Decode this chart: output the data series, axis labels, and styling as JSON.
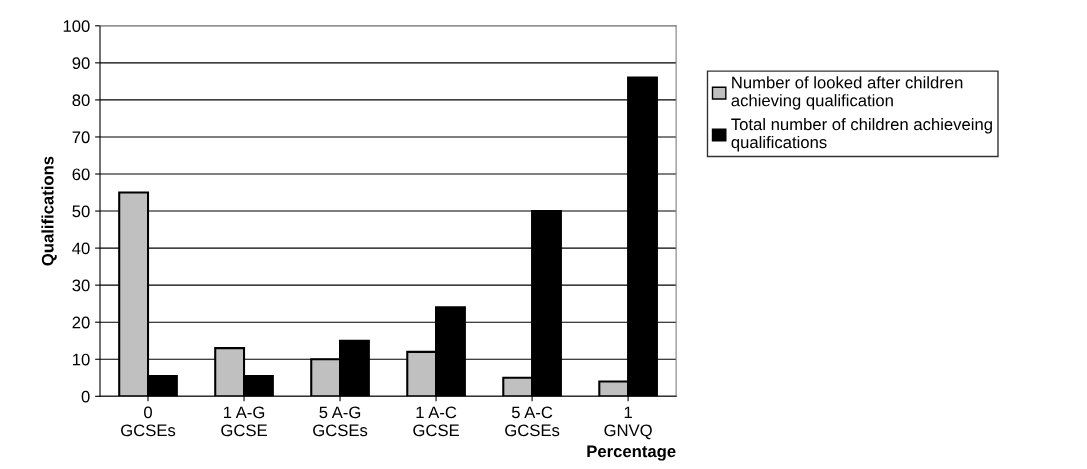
{
  "chart_data": {
    "type": "bar",
    "xlabel": "Percentage",
    "ylabel": "Qualifications",
    "categories": [
      "0\nGCSEs",
      "1 A-G\nGCSE",
      "5 A-G\nGCSEs",
      "1 A-C\nGCSE",
      "5 A-C\nGCSEs",
      "1\nGNVQ"
    ],
    "series": [
      {
        "name": "Number of looked after children\nachieving qualification",
        "color": "#c0c0c0",
        "values": [
          55,
          13,
          10,
          12,
          5,
          4
        ]
      },
      {
        "name": "Total number of children achieveing\nqualifications",
        "color": "#000000",
        "values": [
          5.5,
          5.5,
          15,
          24,
          50,
          86
        ]
      }
    ],
    "ylim": [
      0,
      100
    ],
    "yticks": [
      0,
      10,
      20,
      30,
      40,
      50,
      60,
      70,
      80,
      90,
      100
    ],
    "grid": "y",
    "legend": "right"
  }
}
